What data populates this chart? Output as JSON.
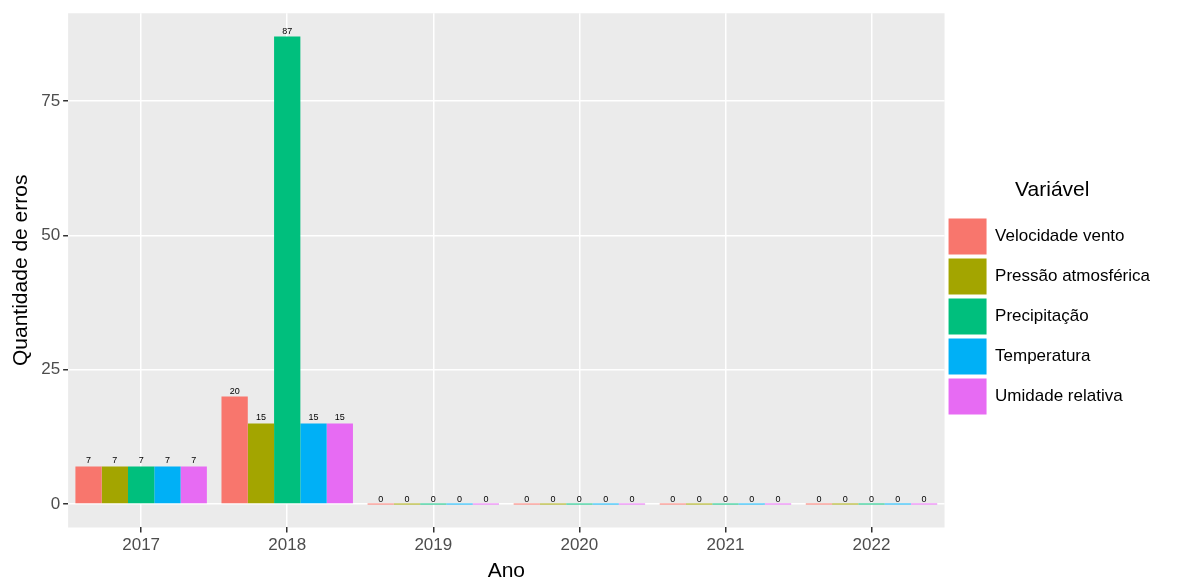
{
  "chart_data": {
    "type": "bar",
    "xlabel": "Ano",
    "ylabel": "Quantidade de erros",
    "legend_title": "Variável",
    "categories": [
      "2017",
      "2018",
      "2019",
      "2020",
      "2021",
      "2022"
    ],
    "series": [
      {
        "name": "Velocidade vento",
        "color": "#f8766d",
        "values": [
          7,
          20,
          0,
          0,
          0,
          0
        ]
      },
      {
        "name": "Pressão atmosférica",
        "color": "#a3a500",
        "values": [
          7,
          15,
          0,
          0,
          0,
          0
        ]
      },
      {
        "name": "Precipitação",
        "color": "#00bf7d",
        "values": [
          7,
          87,
          0,
          0,
          0,
          0
        ]
      },
      {
        "name": "Temperatura",
        "color": "#00b0f6",
        "values": [
          7,
          15,
          0,
          0,
          0,
          0
        ]
      },
      {
        "name": "Umidade relativa",
        "color": "#e76bf3",
        "values": [
          7,
          15,
          0,
          0,
          0,
          0
        ]
      }
    ],
    "ylim": [
      -4.35,
      91.35
    ],
    "yticks": [
      0,
      25,
      50,
      75
    ],
    "grid": true,
    "legend": "right",
    "data_labels": true
  }
}
